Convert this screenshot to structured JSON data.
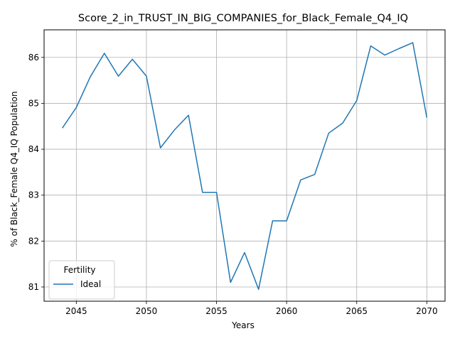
{
  "chart_data": {
    "type": "line",
    "title": "Score_2_in_TRUST_IN_BIG_COMPANIES_for_Black_Female_Q4_IQ",
    "xlabel": "Years",
    "ylabel": "% of Black_Female Q4_IQ Population",
    "xlim": [
      2042.7,
      2071.3
    ],
    "ylim": [
      80.69,
      86.6
    ],
    "x_ticks": [
      2045,
      2050,
      2055,
      2060,
      2065,
      2070
    ],
    "y_ticks": [
      81,
      82,
      83,
      84,
      85,
      86
    ],
    "grid": true,
    "legend": {
      "title": "Fertility",
      "placement": "lower-left"
    },
    "series": [
      {
        "name": "Ideal",
        "color": "#1f77b4",
        "x": [
          2044,
          2045,
          2046,
          2047,
          2048,
          2049,
          2050,
          2051,
          2052,
          2053,
          2054,
          2055,
          2056,
          2057,
          2058,
          2059,
          2060,
          2061,
          2062,
          2063,
          2064,
          2065,
          2066,
          2067,
          2068,
          2069,
          2070
        ],
        "y": [
          84.46,
          84.91,
          85.58,
          86.09,
          85.59,
          85.96,
          85.59,
          84.03,
          84.42,
          84.74,
          83.06,
          83.06,
          81.1,
          81.75,
          80.95,
          82.44,
          82.44,
          83.33,
          83.45,
          84.35,
          84.57,
          85.06,
          86.25,
          86.05,
          86.19,
          86.32,
          84.69
        ]
      }
    ]
  }
}
